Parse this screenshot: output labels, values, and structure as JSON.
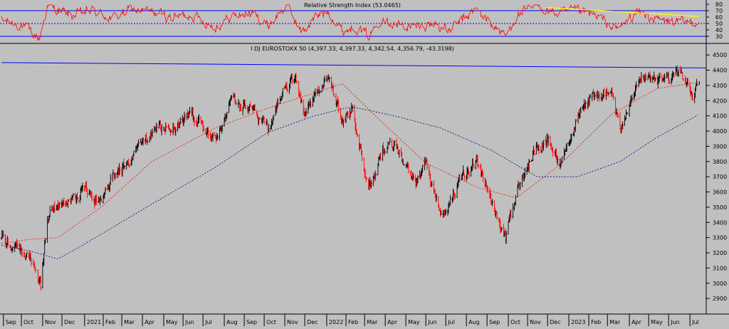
{
  "chart_data": [
    {
      "type": "line",
      "title": "Relative Strength Index (53.0465)",
      "ylim": [
        20,
        80
      ],
      "y_ticks": [
        30,
        40,
        50,
        60,
        70,
        80
      ],
      "reference_lines": [
        30,
        50,
        70
      ],
      "trendline": {
        "from": [
          "2022-11-28",
          75
        ],
        "to": [
          "2023-07-17",
          61
        ],
        "color": "#ffff00"
      },
      "colors": {
        "rsi": "#ff0000",
        "bands": "#0000ff",
        "midline": "#0000ff"
      },
      "series": [
        {
          "x": [
            "2020-09-01",
            "2020-10-01",
            "2020-10-28",
            "2020-11-09",
            "2020-12-15",
            "2021-01-15",
            "2021-02-15",
            "2021-03-15",
            "2021-04-15",
            "2021-05-15",
            "2021-06-15",
            "2021-07-19",
            "2021-08-15",
            "2021-09-15",
            "2021-10-06",
            "2021-11-05",
            "2021-11-26",
            "2021-12-15",
            "2022-01-05",
            "2022-01-27",
            "2022-02-15",
            "2022-03-07",
            "2022-03-28",
            "2022-04-15",
            "2022-05-15",
            "2022-06-15",
            "2022-07-05",
            "2022-08-15",
            "2022-09-29",
            "2022-10-15",
            "2022-11-15",
            "2022-12-15",
            "2023-01-15",
            "2023-02-15",
            "2023-03-15",
            "2023-04-15",
            "2023-05-15",
            "2023-06-15",
            "2023-07-17"
          ],
          "values": [
            55,
            48,
            26,
            78,
            62,
            70,
            58,
            72,
            68,
            60,
            64,
            44,
            62,
            66,
            46,
            80,
            35,
            58,
            70,
            38,
            46,
            30,
            62,
            48,
            44,
            50,
            38,
            72,
            30,
            62,
            78,
            65,
            70,
            60,
            40,
            68,
            55,
            52,
            53
          ]
        }
      ]
    },
    {
      "type": "line",
      "title": "I DJ EUROSTOXX 50 (4,397.33, 4,397.33, 4,342.54, 4,356.79, -43.3198)",
      "ylim": [
        2800,
        4550
      ],
      "y_ticks": [
        2900,
        3000,
        3100,
        3200,
        3300,
        3400,
        3500,
        3600,
        3700,
        3800,
        3900,
        4000,
        4100,
        4200,
        4300,
        4400,
        4500
      ],
      "resistance_line": {
        "from": [
          "2020-09-01",
          4450
        ],
        "to": [
          "2023-07-17",
          4415
        ],
        "color": "#0000ff"
      },
      "colors": {
        "bar_up": "#000000",
        "bar_down": "#ff0000",
        "ma_short": "#ff0000",
        "ma_long": "#00007f"
      },
      "series": [
        {
          "name": "EURO STOXX 50",
          "x": [
            "2020-09-01",
            "2020-09-15",
            "2020-10-01",
            "2020-10-15",
            "2020-10-30",
            "2020-11-09",
            "2020-11-25",
            "2020-12-15",
            "2021-01-05",
            "2021-01-29",
            "2021-02-15",
            "2021-03-15",
            "2021-04-15",
            "2021-05-15",
            "2021-06-15",
            "2021-07-19",
            "2021-08-13",
            "2021-09-15",
            "2021-10-06",
            "2021-10-29",
            "2021-11-17",
            "2021-11-30",
            "2021-12-15",
            "2022-01-05",
            "2022-01-27",
            "2022-02-10",
            "2022-03-07",
            "2022-03-29",
            "2022-04-15",
            "2022-05-15",
            "2022-06-01",
            "2022-06-23",
            "2022-07-05",
            "2022-07-27",
            "2022-08-17",
            "2022-09-05",
            "2022-09-29",
            "2022-10-15",
            "2022-11-01",
            "2022-11-15",
            "2022-12-01",
            "2022-12-20",
            "2023-01-15",
            "2023-02-15",
            "2023-03-07",
            "2023-03-20",
            "2023-04-15",
            "2023-05-15",
            "2023-06-15",
            "2023-07-07",
            "2023-07-17"
          ],
          "values": [
            3300,
            3250,
            3200,
            3180,
            2960,
            3450,
            3520,
            3540,
            3600,
            3550,
            3700,
            3820,
            3990,
            4020,
            4100,
            3950,
            4200,
            4150,
            4010,
            4250,
            4380,
            4100,
            4200,
            4380,
            4050,
            4150,
            3600,
            3900,
            3900,
            3650,
            3800,
            3480,
            3500,
            3700,
            3800,
            3550,
            3300,
            3600,
            3750,
            3900,
            3950,
            3800,
            4100,
            4250,
            4250,
            4000,
            4350,
            4320,
            4380,
            4250,
            4356.79
          ]
        },
        {
          "name": "MA short",
          "x": [
            "2020-09-01",
            "2020-10-15",
            "2020-11-25",
            "2021-01-29",
            "2021-04-15",
            "2021-07-19",
            "2021-10-06",
            "2021-12-15",
            "2022-01-27",
            "2022-03-29",
            "2022-06-01",
            "2022-08-17",
            "2022-10-15",
            "2022-12-20",
            "2023-03-07",
            "2023-05-15",
            "2023-07-17"
          ],
          "values": [
            3260,
            3290,
            3300,
            3500,
            3800,
            4020,
            4150,
            4250,
            4310,
            4050,
            3790,
            3630,
            3560,
            3780,
            4110,
            4280,
            4320
          ]
        },
        {
          "name": "MA long",
          "x": [
            "2020-09-01",
            "2020-10-15",
            "2020-11-25",
            "2021-01-05",
            "2021-04-15",
            "2021-07-19",
            "2021-10-06",
            "2021-12-15",
            "2022-02-10",
            "2022-04-15",
            "2022-06-23",
            "2022-09-05",
            "2022-11-15",
            "2023-01-15",
            "2023-03-20",
            "2023-05-15",
            "2023-07-17"
          ],
          "values": [
            3250,
            3210,
            3160,
            3260,
            3520,
            3760,
            3990,
            4100,
            4160,
            4100,
            4020,
            3880,
            3700,
            3700,
            3800,
            3960,
            4110
          ]
        }
      ]
    }
  ],
  "x_axis_labels": [
    {
      "label": "Sep",
      "date": "2020-09-04"
    },
    {
      "label": "Oct",
      "date": "2020-10-01"
    },
    {
      "label": "Nov",
      "date": "2020-11-02"
    },
    {
      "label": "Dec",
      "date": "2020-12-01"
    },
    {
      "label": "2021",
      "date": "2021-01-04"
    },
    {
      "label": "Feb",
      "date": "2021-02-01"
    },
    {
      "label": "Mar",
      "date": "2021-03-01"
    },
    {
      "label": "Apr",
      "date": "2021-04-01"
    },
    {
      "label": "May",
      "date": "2021-05-03"
    },
    {
      "label": "Jun",
      "date": "2021-06-01"
    },
    {
      "label": "Jul",
      "date": "2021-07-01"
    },
    {
      "label": "Aug",
      "date": "2021-08-02"
    },
    {
      "label": "Sep",
      "date": "2021-09-01"
    },
    {
      "label": "Oct",
      "date": "2021-10-01"
    },
    {
      "label": "Nov",
      "date": "2021-11-01"
    },
    {
      "label": "Dec",
      "date": "2021-12-01"
    },
    {
      "label": "2022",
      "date": "2022-01-03"
    },
    {
      "label": "Feb",
      "date": "2022-02-01"
    },
    {
      "label": "Mar",
      "date": "2022-03-01"
    },
    {
      "label": "Apr",
      "date": "2022-04-01"
    },
    {
      "label": "May",
      "date": "2022-05-02"
    },
    {
      "label": "Jun",
      "date": "2022-06-01"
    },
    {
      "label": "Jul",
      "date": "2022-07-01"
    },
    {
      "label": "Aug",
      "date": "2022-08-01"
    },
    {
      "label": "Sep",
      "date": "2022-09-01"
    },
    {
      "label": "Oct",
      "date": "2022-10-03"
    },
    {
      "label": "Nov",
      "date": "2022-11-01"
    },
    {
      "label": "Dec",
      "date": "2022-12-01"
    },
    {
      "label": "2023",
      "date": "2023-01-02"
    },
    {
      "label": "Feb",
      "date": "2023-02-01"
    },
    {
      "label": "Mar",
      "date": "2023-03-01"
    },
    {
      "label": "Apr",
      "date": "2023-04-03"
    },
    {
      "label": "May",
      "date": "2023-05-02"
    },
    {
      "label": "Jun",
      "date": "2023-06-01"
    },
    {
      "label": "Jul",
      "date": "2023-07-03"
    }
  ]
}
